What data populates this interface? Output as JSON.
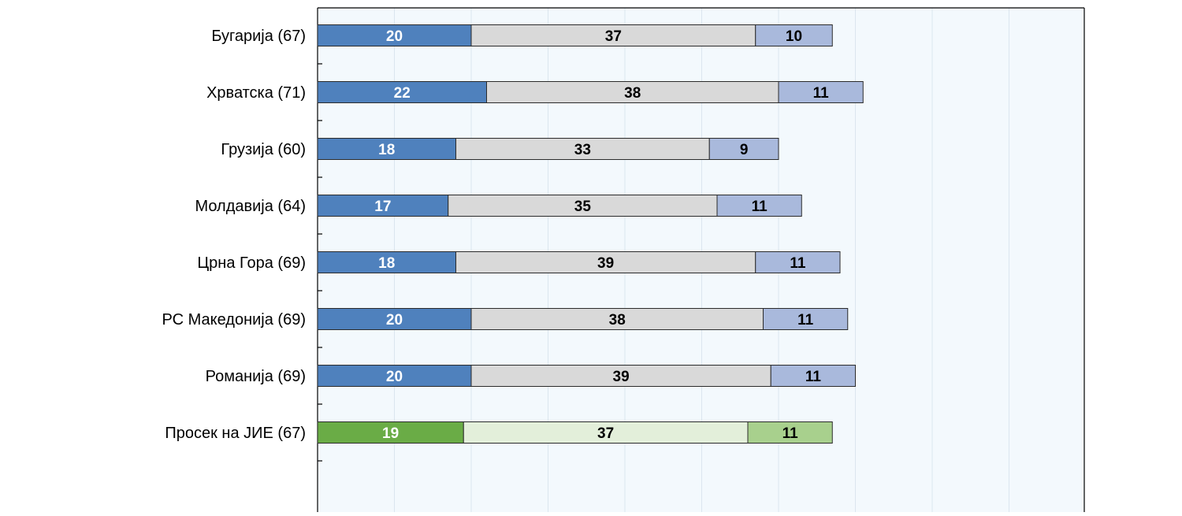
{
  "chart_data": {
    "type": "bar",
    "stacked": true,
    "orientation": "horizontal",
    "categories": [
      "Бугарија (67)",
      "Хрватска (71)",
      "Грузија (60)",
      "Молдавија (64)",
      "Црна Гора  (69)",
      "РС Македонија  (69)",
      "Романија  (69)",
      "Просек на ЈИЕ (67)"
    ],
    "series": [
      {
        "values": [
          20,
          22,
          18,
          17,
          18,
          20,
          20,
          19
        ]
      },
      {
        "values": [
          37,
          38,
          33,
          35,
          39,
          38,
          39,
          37
        ]
      },
      {
        "values": [
          10,
          11,
          9,
          11,
          11,
          11,
          11,
          11
        ]
      }
    ],
    "data_labels": [
      [
        "20",
        "37",
        "10"
      ],
      [
        "22",
        "38",
        "11"
      ],
      [
        "18",
        "33",
        "9"
      ],
      [
        "17",
        "35",
        "11"
      ],
      [
        "18",
        "39",
        "11"
      ],
      [
        "20",
        "38",
        "11"
      ],
      [
        "20",
        "39",
        "11"
      ],
      [
        "19",
        "37",
        "11"
      ]
    ],
    "highlight_category": "Просек на ЈИЕ (67)",
    "xlim": [
      0,
      100
    ],
    "grid": true,
    "legend": "none",
    "title": "",
    "xlabel": "",
    "ylabel": ""
  },
  "colors": {
    "plot_background": "#f3f9fd",
    "gridline": "#dbe6ef",
    "axis": "#000000",
    "bar_outline": "#2b2b2b",
    "segment_fill": [
      "#4f81bd",
      "#d9d9d9",
      "#a9b9dc"
    ],
    "highlight_fill": [
      "#6aac46",
      "#e3efda",
      "#a8d08d"
    ],
    "label_text": [
      "#ffffff",
      "#000000",
      "#000000"
    ]
  }
}
